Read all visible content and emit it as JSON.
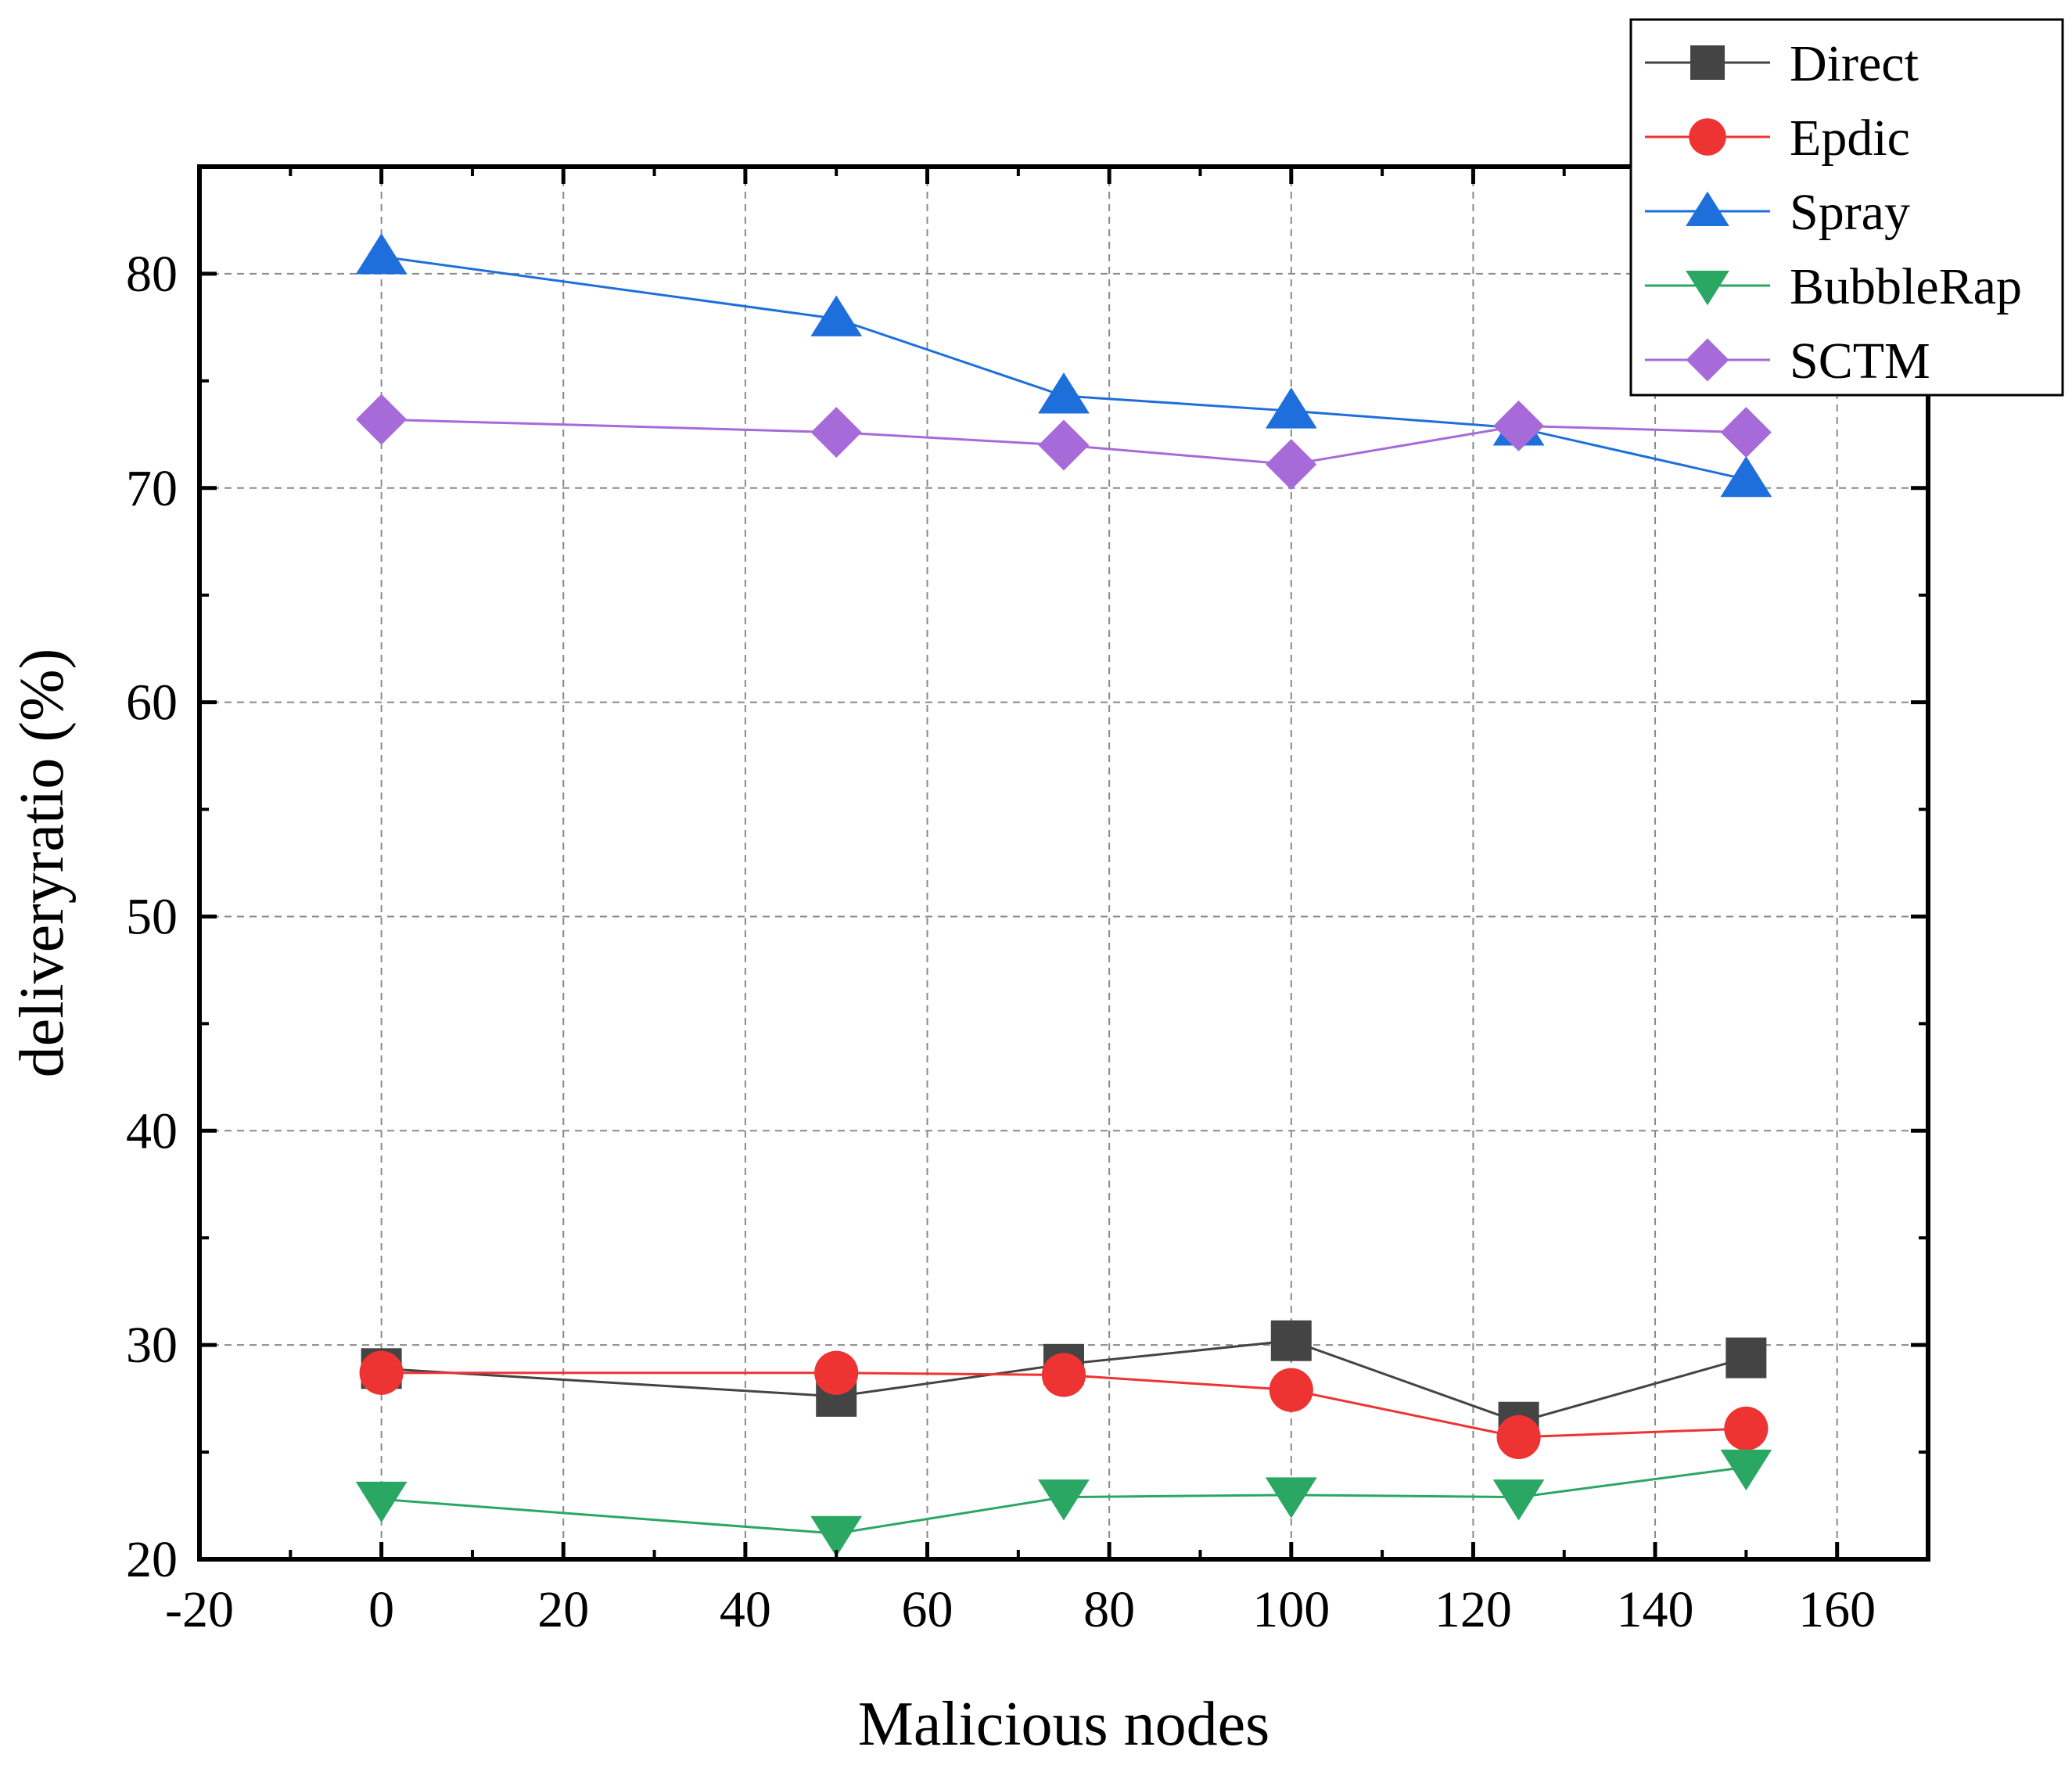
{
  "chart_data": {
    "type": "line",
    "title": "",
    "xlabel": "Malicious nodes",
    "ylabel": "deliveryratio (%)",
    "xlim": [
      -20,
      170
    ],
    "ylim": [
      20,
      85
    ],
    "xticks": [
      -20,
      0,
      20,
      40,
      60,
      80,
      100,
      120,
      140,
      160
    ],
    "yticks": [
      20,
      30,
      40,
      50,
      60,
      70,
      80
    ],
    "grid": true,
    "legend_position": "top-right",
    "x": [
      0,
      50,
      75,
      100,
      125,
      150
    ],
    "series": [
      {
        "name": "Direct",
        "marker": "square",
        "color": "#444444",
        "values": [
          28.9,
          27.6,
          29.1,
          30.2,
          26.4,
          29.4
        ]
      },
      {
        "name": "Epdic",
        "marker": "circle",
        "color": "#ee3333",
        "values": [
          28.7,
          28.7,
          28.6,
          27.9,
          25.7,
          26.1
        ]
      },
      {
        "name": "Spray",
        "marker": "triangle-up",
        "color": "#1e6fdc",
        "values": [
          80.8,
          77.9,
          74.3,
          73.6,
          72.8,
          70.4
        ]
      },
      {
        "name": "BubbleRap",
        "marker": "triangle-down",
        "color": "#2aa863",
        "values": [
          22.8,
          21.2,
          22.9,
          23.0,
          22.9,
          24.3
        ]
      },
      {
        "name": "SCTM",
        "marker": "diamond",
        "color": "#a66bd9",
        "values": [
          73.2,
          72.6,
          72.0,
          71.1,
          72.9,
          72.6
        ]
      }
    ]
  }
}
